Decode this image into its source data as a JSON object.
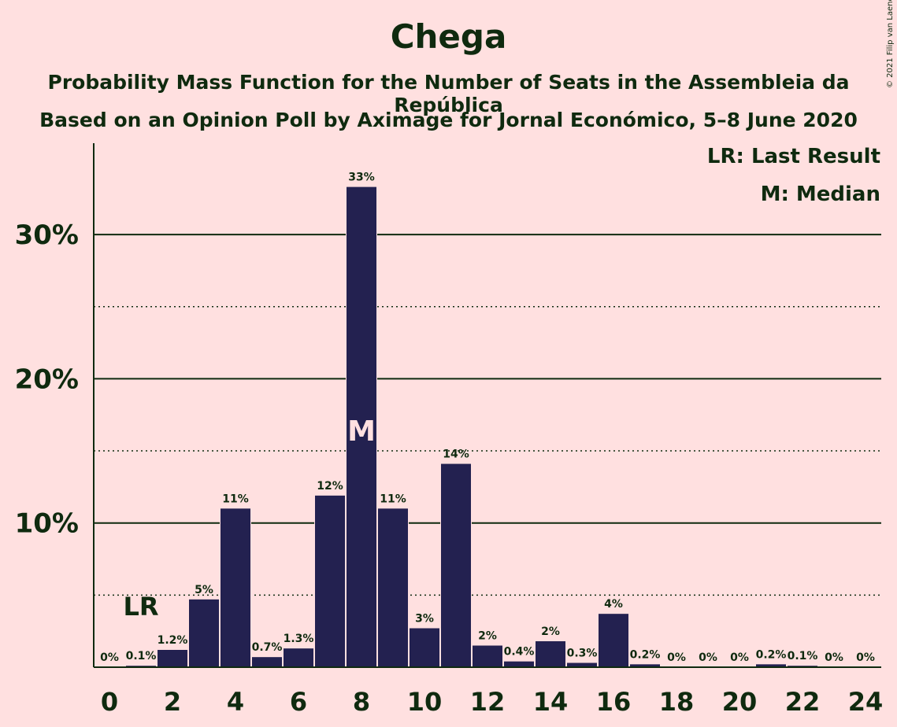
{
  "chart_data": {
    "type": "bar",
    "title": "Chega",
    "subtitle": "Probability Mass Function for the Number of Seats in the Assembleia da República",
    "subtitle2": "Based on an Opinion Poll by Aximage for Jornal Económico, 5–8 June 2020",
    "copyright": "© 2021 Filip van Laenen",
    "legend": {
      "last_result": "LR: Last Result",
      "median": "M: Median"
    },
    "categories": [
      0,
      1,
      2,
      3,
      4,
      5,
      6,
      7,
      8,
      9,
      10,
      11,
      12,
      13,
      14,
      15,
      16,
      17,
      18,
      19,
      20,
      21,
      22,
      23,
      24
    ],
    "values": [
      0,
      0.1,
      1.2,
      4.7,
      11.0,
      0.7,
      1.3,
      11.9,
      33.3,
      11.0,
      2.7,
      14.1,
      1.5,
      0.4,
      1.8,
      0.3,
      3.7,
      0.2,
      0,
      0,
      0,
      0.2,
      0.1,
      0,
      0
    ],
    "labels": [
      "0%",
      "0.1%",
      "1.2%",
      "5%",
      "11%",
      "0.7%",
      "1.3%",
      "12%",
      "33%",
      "11%",
      "3%",
      "14%",
      "2%",
      "0.4%",
      "2%",
      "0.3%",
      "4%",
      "0.2%",
      "0%",
      "0%",
      "0%",
      "0.2%",
      "0.1%",
      "0%",
      "0%"
    ],
    "x_tick_labels": [
      "0",
      "2",
      "4",
      "6",
      "8",
      "10",
      "12",
      "14",
      "16",
      "18",
      "20",
      "22",
      "24"
    ],
    "y_tick_labels": [
      "10%",
      "20%",
      "30%"
    ],
    "ylim": [
      0,
      36
    ],
    "last_result": {
      "seat": 1,
      "label": "LR"
    },
    "median": {
      "seat": 8,
      "label": "M"
    },
    "bar_color": "#232150",
    "background_color": "#FFE0E0"
  }
}
